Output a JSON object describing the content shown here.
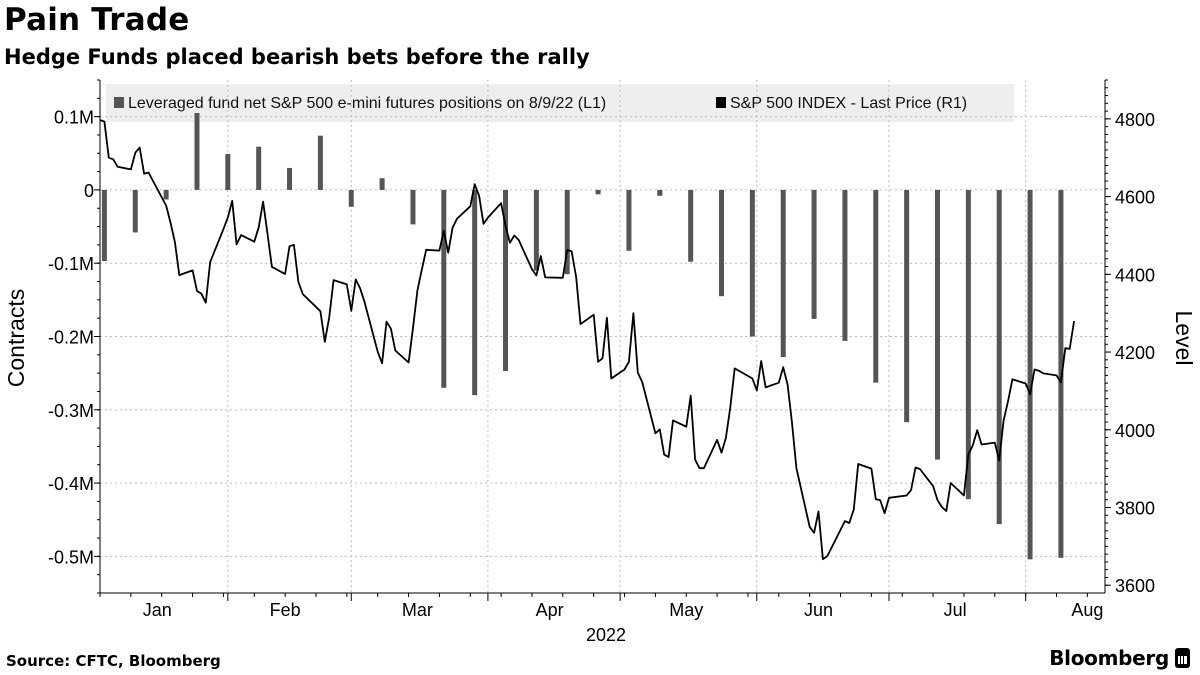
{
  "header": {
    "title": "Pain Trade",
    "subtitle": "Hedge Funds placed bearish bets before the rally"
  },
  "footer": {
    "source": "Source: CFTC, Bloomberg",
    "brand": "Bloomberg"
  },
  "colors": {
    "bars": "#555555",
    "line": "#000000",
    "grid": "#bbbbbb",
    "legend_bg": "#eeeeee"
  },
  "chart_data": {
    "type": "bar+line",
    "legend_position": "top",
    "grid": true,
    "legend": [
      {
        "label": "Leveraged fund net S&P 500 e-mini futures positions on 8/9/22 (L1)",
        "color": "#555555"
      },
      {
        "label": "S&P 500 INDEX - Last Price (R1)",
        "color": "#000000"
      }
    ],
    "left_axis": {
      "label": "Contracts",
      "range": [
        -0.55,
        0.15
      ],
      "ticks": [
        {
          "value": 0.1,
          "label": "0.1M"
        },
        {
          "value": 0,
          "label": "0"
        },
        {
          "value": -0.1,
          "label": "-0.1M"
        },
        {
          "value": -0.2,
          "label": "-0.2M"
        },
        {
          "value": -0.3,
          "label": "-0.3M"
        },
        {
          "value": -0.4,
          "label": "-0.4M"
        },
        {
          "value": -0.5,
          "label": "-0.5M"
        }
      ]
    },
    "right_axis": {
      "label": "Level",
      "range": [
        3580,
        4900
      ],
      "ticks": [
        4800,
        4600,
        4400,
        4200,
        4000,
        3800,
        3600
      ]
    },
    "x_axis": {
      "start": "2022-01-03",
      "end": "2022-08-19",
      "year_label": "2022",
      "months": [
        {
          "label": "Jan",
          "date": "2022-01-16"
        },
        {
          "label": "Feb",
          "date": "2022-02-14"
        },
        {
          "label": "Mar",
          "date": "2022-03-16"
        },
        {
          "label": "Apr",
          "date": "2022-04-15"
        },
        {
          "label": "May",
          "date": "2022-05-16"
        },
        {
          "label": "Jun",
          "date": "2022-06-15"
        },
        {
          "label": "Jul",
          "date": "2022-07-16"
        },
        {
          "label": "Aug",
          "date": "2022-08-15"
        }
      ],
      "gridlines": [
        "2022-02-01",
        "2022-03-01",
        "2022-04-01",
        "2022-05-01",
        "2022-06-01",
        "2022-07-01",
        "2022-08-01"
      ]
    },
    "bars": {
      "name": "Leveraged fund net S&P 500 e-mini futures positions on 8/9/22 (L1)",
      "points": [
        [
          "2022-01-04",
          -0.097
        ],
        [
          "2022-01-11",
          -0.058
        ],
        [
          "2022-01-18",
          -0.013
        ],
        [
          "2022-01-25",
          0.105
        ],
        [
          "2022-02-01",
          0.049
        ],
        [
          "2022-02-08",
          0.059
        ],
        [
          "2022-02-15",
          0.03
        ],
        [
          "2022-02-22",
          0.074
        ],
        [
          "2022-03-01",
          -0.023
        ],
        [
          "2022-03-08",
          0.016
        ],
        [
          "2022-03-15",
          -0.047
        ],
        [
          "2022-03-22",
          -0.27
        ],
        [
          "2022-03-29",
          -0.28
        ],
        [
          "2022-04-05",
          -0.247
        ],
        [
          "2022-04-12",
          -0.11
        ],
        [
          "2022-04-19",
          -0.115
        ],
        [
          "2022-04-26",
          -0.006
        ],
        [
          "2022-05-03",
          -0.083
        ],
        [
          "2022-05-10",
          -0.008
        ],
        [
          "2022-05-17",
          -0.098
        ],
        [
          "2022-05-24",
          -0.145
        ],
        [
          "2022-05-31",
          -0.2
        ],
        [
          "2022-06-07",
          -0.228
        ],
        [
          "2022-06-14",
          -0.176
        ],
        [
          "2022-06-21",
          -0.206
        ],
        [
          "2022-06-28",
          -0.263
        ],
        [
          "2022-07-05",
          -0.317
        ],
        [
          "2022-07-12",
          -0.368
        ],
        [
          "2022-07-19",
          -0.422
        ],
        [
          "2022-07-26",
          -0.456
        ],
        [
          "2022-08-02",
          -0.504
        ],
        [
          "2022-08-09",
          -0.502
        ]
      ]
    },
    "line": {
      "name": "S&P 500 INDEX - Last Price (R1)",
      "points": [
        [
          "2022-01-03",
          4797
        ],
        [
          "2022-01-04",
          4793
        ],
        [
          "2022-01-05",
          4700
        ],
        [
          "2022-01-06",
          4696
        ],
        [
          "2022-01-07",
          4677
        ],
        [
          "2022-01-10",
          4670
        ],
        [
          "2022-01-11",
          4713
        ],
        [
          "2022-01-12",
          4726
        ],
        [
          "2022-01-13",
          4659
        ],
        [
          "2022-01-14",
          4662
        ],
        [
          "2022-01-18",
          4577
        ],
        [
          "2022-01-19",
          4533
        ],
        [
          "2022-01-20",
          4483
        ],
        [
          "2022-01-21",
          4398
        ],
        [
          "2022-01-24",
          4410
        ],
        [
          "2022-01-25",
          4357
        ],
        [
          "2022-01-26",
          4350
        ],
        [
          "2022-01-27",
          4327
        ],
        [
          "2022-01-28",
          4432
        ],
        [
          "2022-01-31",
          4516
        ],
        [
          "2022-02-01",
          4546
        ],
        [
          "2022-02-02",
          4589
        ],
        [
          "2022-02-03",
          4477
        ],
        [
          "2022-02-04",
          4501
        ],
        [
          "2022-02-07",
          4484
        ],
        [
          "2022-02-08",
          4521
        ],
        [
          "2022-02-09",
          4587
        ],
        [
          "2022-02-10",
          4504
        ],
        [
          "2022-02-11",
          4419
        ],
        [
          "2022-02-14",
          4401
        ],
        [
          "2022-02-15",
          4472
        ],
        [
          "2022-02-16",
          4476
        ],
        [
          "2022-02-17",
          4380
        ],
        [
          "2022-02-18",
          4349
        ],
        [
          "2022-02-22",
          4305
        ],
        [
          "2022-02-23",
          4226
        ],
        [
          "2022-02-24",
          4289
        ],
        [
          "2022-02-25",
          4385
        ],
        [
          "2022-02-28",
          4374
        ],
        [
          "2022-03-01",
          4306
        ],
        [
          "2022-03-02",
          4387
        ],
        [
          "2022-03-03",
          4364
        ],
        [
          "2022-03-04",
          4329
        ],
        [
          "2022-03-07",
          4201
        ],
        [
          "2022-03-08",
          4171
        ],
        [
          "2022-03-09",
          4278
        ],
        [
          "2022-03-10",
          4260
        ],
        [
          "2022-03-11",
          4204
        ],
        [
          "2022-03-14",
          4173
        ],
        [
          "2022-03-15",
          4262
        ],
        [
          "2022-03-16",
          4358
        ],
        [
          "2022-03-17",
          4412
        ],
        [
          "2022-03-18",
          4463
        ],
        [
          "2022-03-21",
          4461
        ],
        [
          "2022-03-22",
          4512
        ],
        [
          "2022-03-23",
          4456
        ],
        [
          "2022-03-24",
          4520
        ],
        [
          "2022-03-25",
          4543
        ],
        [
          "2022-03-28",
          4575
        ],
        [
          "2022-03-29",
          4632
        ],
        [
          "2022-03-30",
          4602
        ],
        [
          "2022-03-31",
          4530
        ],
        [
          "2022-04-01",
          4546
        ],
        [
          "2022-04-04",
          4583
        ],
        [
          "2022-04-05",
          4525
        ],
        [
          "2022-04-06",
          4481
        ],
        [
          "2022-04-07",
          4500
        ],
        [
          "2022-04-08",
          4488
        ],
        [
          "2022-04-11",
          4413
        ],
        [
          "2022-04-12",
          4397
        ],
        [
          "2022-04-13",
          4447
        ],
        [
          "2022-04-14",
          4392
        ],
        [
          "2022-04-18",
          4391
        ],
        [
          "2022-04-19",
          4463
        ],
        [
          "2022-04-20",
          4459
        ],
        [
          "2022-04-21",
          4394
        ],
        [
          "2022-04-22",
          4272
        ],
        [
          "2022-04-25",
          4296
        ],
        [
          "2022-04-26",
          4175
        ],
        [
          "2022-04-27",
          4184
        ],
        [
          "2022-04-28",
          4288
        ],
        [
          "2022-04-29",
          4132
        ],
        [
          "2022-05-02",
          4155
        ],
        [
          "2022-05-03",
          4175
        ],
        [
          "2022-05-04",
          4300
        ],
        [
          "2022-05-05",
          4147
        ],
        [
          "2022-05-06",
          4123
        ],
        [
          "2022-05-09",
          3991
        ],
        [
          "2022-05-10",
          4001
        ],
        [
          "2022-05-11",
          3936
        ],
        [
          "2022-05-12",
          3930
        ],
        [
          "2022-05-13",
          4024
        ],
        [
          "2022-05-16",
          4008
        ],
        [
          "2022-05-17",
          4088
        ],
        [
          "2022-05-18",
          3923
        ],
        [
          "2022-05-19",
          3901
        ],
        [
          "2022-05-20",
          3901
        ],
        [
          "2022-05-23",
          3974
        ],
        [
          "2022-05-24",
          3941
        ],
        [
          "2022-05-25",
          3979
        ],
        [
          "2022-05-26",
          4058
        ],
        [
          "2022-05-27",
          4158
        ],
        [
          "2022-05-31",
          4132
        ],
        [
          "2022-06-01",
          4101
        ],
        [
          "2022-06-02",
          4177
        ],
        [
          "2022-06-03",
          4109
        ],
        [
          "2022-06-06",
          4121
        ],
        [
          "2022-06-07",
          4161
        ],
        [
          "2022-06-08",
          4116
        ],
        [
          "2022-06-09",
          4018
        ],
        [
          "2022-06-10",
          3901
        ],
        [
          "2022-06-13",
          3750
        ],
        [
          "2022-06-14",
          3735
        ],
        [
          "2022-06-15",
          3790
        ],
        [
          "2022-06-16",
          3667
        ],
        [
          "2022-06-17",
          3675
        ],
        [
          "2022-06-21",
          3765
        ],
        [
          "2022-06-22",
          3760
        ],
        [
          "2022-06-23",
          3795
        ],
        [
          "2022-06-24",
          3912
        ],
        [
          "2022-06-27",
          3900
        ],
        [
          "2022-06-28",
          3821
        ],
        [
          "2022-06-29",
          3819
        ],
        [
          "2022-06-30",
          3785
        ],
        [
          "2022-07-01",
          3825
        ],
        [
          "2022-07-05",
          3831
        ],
        [
          "2022-07-06",
          3845
        ],
        [
          "2022-07-07",
          3903
        ],
        [
          "2022-07-08",
          3899
        ],
        [
          "2022-07-11",
          3855
        ],
        [
          "2022-07-12",
          3819
        ],
        [
          "2022-07-13",
          3801
        ],
        [
          "2022-07-14",
          3791
        ],
        [
          "2022-07-15",
          3863
        ],
        [
          "2022-07-18",
          3831
        ],
        [
          "2022-07-19",
          3937
        ],
        [
          "2022-07-20",
          3960
        ],
        [
          "2022-07-21",
          3999
        ],
        [
          "2022-07-22",
          3962
        ],
        [
          "2022-07-25",
          3967
        ],
        [
          "2022-07-26",
          3921
        ],
        [
          "2022-07-27",
          4024
        ],
        [
          "2022-07-28",
          4073
        ],
        [
          "2022-07-29",
          4130
        ],
        [
          "2022-08-01",
          4119
        ],
        [
          "2022-08-02",
          4091
        ],
        [
          "2022-08-03",
          4155
        ],
        [
          "2022-08-04",
          4152
        ],
        [
          "2022-08-05",
          4145
        ],
        [
          "2022-08-08",
          4140
        ],
        [
          "2022-08-09",
          4122
        ],
        [
          "2022-08-10",
          4210
        ],
        [
          "2022-08-11",
          4208
        ],
        [
          "2022-08-12",
          4280
        ]
      ]
    }
  }
}
